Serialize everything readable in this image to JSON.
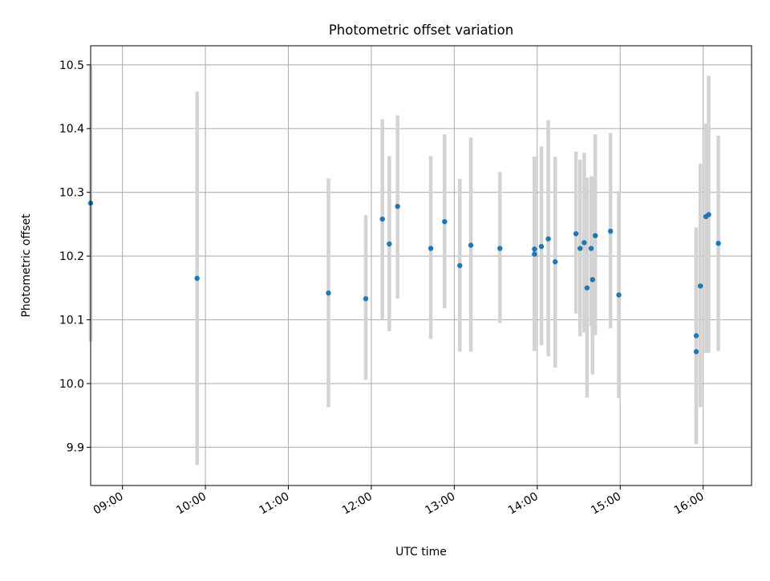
{
  "chart_data": {
    "type": "scatter",
    "title": "Photometric offset variation",
    "xlabel": "UTC time",
    "ylabel": "Photometric offset",
    "grid": true,
    "legend": "none",
    "xlim": [
      "08:37",
      "16:35"
    ],
    "ylim": [
      9.84,
      10.53
    ],
    "x_ticks": [
      "09:00",
      "10:00",
      "11:00",
      "12:00",
      "13:00",
      "14:00",
      "15:00",
      "16:00"
    ],
    "y_ticks": [
      "9.9",
      "10.0",
      "10.1",
      "10.2",
      "10.3",
      "10.4",
      "10.5"
    ],
    "series": [
      {
        "x": [
          "08:37",
          "09:54",
          "11:29",
          "11:56",
          "12:08",
          "12:13",
          "12:19",
          "12:43",
          "12:53",
          "13:04",
          "13:12",
          "13:33",
          "13:58",
          "13:58",
          "14:03",
          "14:08",
          "14:13",
          "14:28",
          "14:31",
          "14:34",
          "14:36",
          "14:39",
          "14:40",
          "14:42",
          "14:53",
          "14:59",
          "15:55",
          "15:55",
          "15:58",
          "16:02",
          "16:04",
          "16:11"
        ],
        "y": [
          10.283,
          10.165,
          10.142,
          10.133,
          10.258,
          10.219,
          10.278,
          10.212,
          10.254,
          10.185,
          10.217,
          10.212,
          10.211,
          10.203,
          10.215,
          10.227,
          10.191,
          10.235,
          10.212,
          10.221,
          10.15,
          10.212,
          10.163,
          10.232,
          10.239,
          10.139,
          10.075,
          10.05,
          10.153,
          10.262,
          10.265,
          10.22
        ],
        "yerr_low": [
          10.066,
          9.872,
          9.963,
          10.006,
          10.1,
          10.082,
          10.133,
          10.07,
          10.118,
          10.05,
          10.05,
          10.095,
          10.051,
          10.051,
          10.06,
          10.043,
          10.025,
          10.11,
          10.074,
          10.08,
          9.978,
          10.09,
          10.014,
          10.076,
          10.087,
          9.977,
          9.905,
          9.905,
          9.963,
          10.048,
          10.048,
          10.051
        ],
        "yerr_high": [
          10.5,
          10.458,
          10.322,
          10.264,
          10.415,
          10.357,
          10.421,
          10.357,
          10.391,
          10.321,
          10.386,
          10.332,
          10.356,
          10.356,
          10.372,
          10.413,
          10.356,
          10.364,
          10.351,
          10.362,
          10.323,
          10.325,
          10.325,
          10.391,
          10.393,
          10.302,
          10.245,
          10.245,
          10.345,
          10.408,
          10.483,
          10.389
        ],
        "color": "#1f77b4",
        "errorbar_color": "#d3d3d3"
      }
    ]
  }
}
